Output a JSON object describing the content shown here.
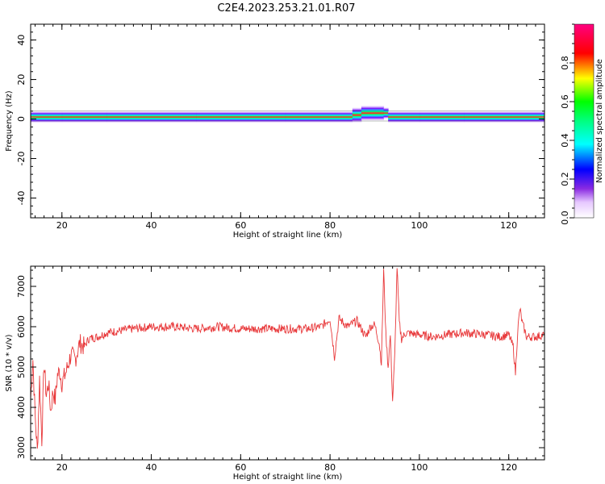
{
  "title": "C2E4.2023.253.21.01.R07",
  "chart_data": [
    {
      "type": "heatmap",
      "xlabel": "Height of straight line (km)",
      "ylabel": "Frequency (Hz)",
      "xlim": [
        13,
        128
      ],
      "ylim": [
        -50,
        48
      ],
      "xticks": [
        20,
        40,
        60,
        80,
        100,
        120
      ],
      "yticks": [
        -40,
        -20,
        0,
        20,
        40
      ],
      "band_center_hz": [
        [
          13,
          1
        ],
        [
          20,
          1
        ],
        [
          30,
          1
        ],
        [
          50,
          1
        ],
        [
          70,
          1
        ],
        [
          85,
          2
        ],
        [
          87,
          3
        ],
        [
          92,
          3
        ],
        [
          93,
          1
        ],
        [
          100,
          1
        ],
        [
          110,
          1
        ],
        [
          128,
          1
        ]
      ],
      "colorbar": {
        "label": "Normalized spectral amplitude",
        "ticks": [
          0.0,
          0.2,
          0.4,
          0.6,
          0.8
        ],
        "range": [
          0,
          1
        ]
      }
    },
    {
      "type": "line",
      "xlabel": "Height of straight line (km)",
      "ylabel": "SNR (10 * v/v)",
      "xlim": [
        13,
        128
      ],
      "ylim": [
        2700,
        7500
      ],
      "xticks": [
        20,
        40,
        60,
        80,
        100,
        120
      ],
      "yticks": [
        3000,
        4000,
        5000,
        6000,
        7000
      ],
      "color": "#e8383a",
      "points": [
        [
          13,
          4200
        ],
        [
          13.5,
          5200
        ],
        [
          14,
          3800
        ],
        [
          14.5,
          2900
        ],
        [
          15,
          4700
        ],
        [
          15.5,
          3200
        ],
        [
          16,
          5100
        ],
        [
          16.5,
          4300
        ],
        [
          17,
          4600
        ],
        [
          17.5,
          3900
        ],
        [
          18,
          4400
        ],
        [
          18.5,
          4200
        ],
        [
          19,
          4800
        ],
        [
          19.5,
          4900
        ],
        [
          20,
          4600
        ],
        [
          21,
          4900
        ],
        [
          22,
          5300
        ],
        [
          23,
          5200
        ],
        [
          24,
          5600
        ],
        [
          25,
          5500
        ],
        [
          26,
          5700
        ],
        [
          28,
          5750
        ],
        [
          30,
          5850
        ],
        [
          33,
          5900
        ],
        [
          36,
          5950
        ],
        [
          40,
          6000
        ],
        [
          45,
          6000
        ],
        [
          50,
          5950
        ],
        [
          55,
          6000
        ],
        [
          60,
          5950
        ],
        [
          65,
          5950
        ],
        [
          70,
          5950
        ],
        [
          75,
          5950
        ],
        [
          78,
          6000
        ],
        [
          80,
          6200
        ],
        [
          81,
          5250
        ],
        [
          82,
          6200
        ],
        [
          84,
          6000
        ],
        [
          86,
          6150
        ],
        [
          88,
          5750
        ],
        [
          89,
          6000
        ],
        [
          90,
          6050
        ],
        [
          91,
          5600
        ],
        [
          91.5,
          5100
        ],
        [
          92,
          7400
        ],
        [
          92.5,
          5800
        ],
        [
          93,
          5000
        ],
        [
          93.5,
          5800
        ],
        [
          94,
          4150
        ],
        [
          94.5,
          5300
        ],
        [
          95,
          7500
        ],
        [
          95.5,
          6100
        ],
        [
          96,
          5700
        ],
        [
          97,
          5850
        ],
        [
          100,
          5800
        ],
        [
          103,
          5750
        ],
        [
          106,
          5800
        ],
        [
          110,
          5850
        ],
        [
          115,
          5800
        ],
        [
          118,
          5750
        ],
        [
          120,
          5800
        ],
        [
          121,
          5500
        ],
        [
          121.5,
          4850
        ],
        [
          122,
          5900
        ],
        [
          122.5,
          6450
        ],
        [
          123,
          6100
        ],
        [
          124,
          5750
        ],
        [
          126,
          5750
        ],
        [
          128,
          5800
        ]
      ]
    }
  ]
}
